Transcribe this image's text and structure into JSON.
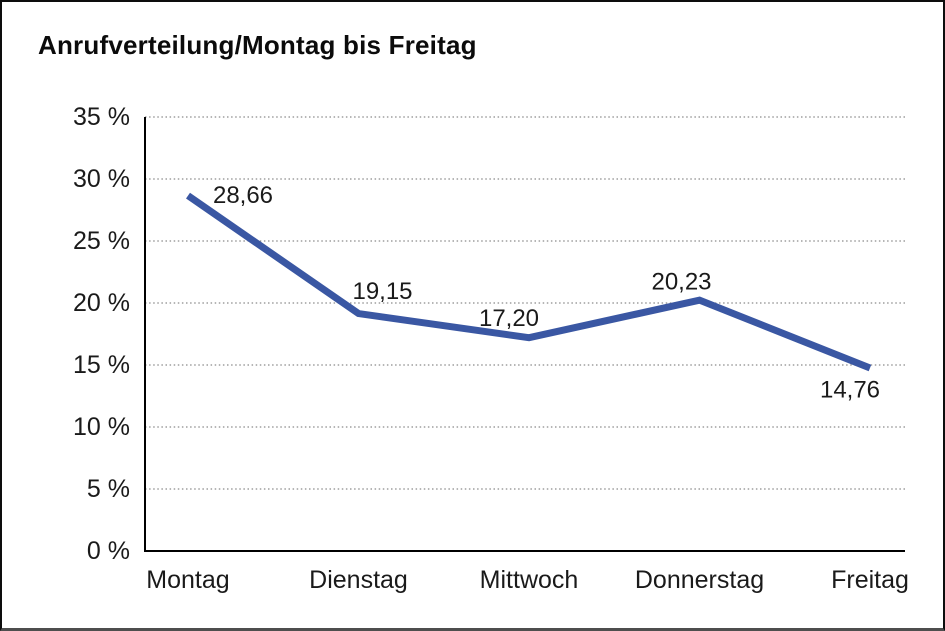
{
  "window": {
    "background": "#ffffff",
    "border_color": "#0d0d0d",
    "bottom_border_color": "#4e4e4e"
  },
  "chart_data": {
    "type": "line",
    "title": "Anrufverteilung/Montag bis Freitag",
    "categories": [
      "Montag",
      "Dienstag",
      "Mittwoch",
      "Donnerstag",
      "Freitag"
    ],
    "values": [
      28.66,
      19.15,
      17.2,
      20.23,
      14.76
    ],
    "value_labels": [
      "28,66",
      "19,15",
      "17,20",
      "20,23",
      "14,76"
    ],
    "xlabel": "",
    "ylabel": "",
    "ylim": [
      0,
      35
    ],
    "y_tick_step": 5,
    "y_tick_labels": [
      "0 %",
      "5 %",
      "10 %",
      "15 %",
      "20 %",
      "25 %",
      "30 %",
      "35 %"
    ],
    "grid": "horizontal-dotted",
    "legend": "none",
    "line_color": "#3A57A3",
    "grid_color": "#8a8a8a",
    "axis_color": "#000000",
    "label_color": "#1a1a1a"
  }
}
